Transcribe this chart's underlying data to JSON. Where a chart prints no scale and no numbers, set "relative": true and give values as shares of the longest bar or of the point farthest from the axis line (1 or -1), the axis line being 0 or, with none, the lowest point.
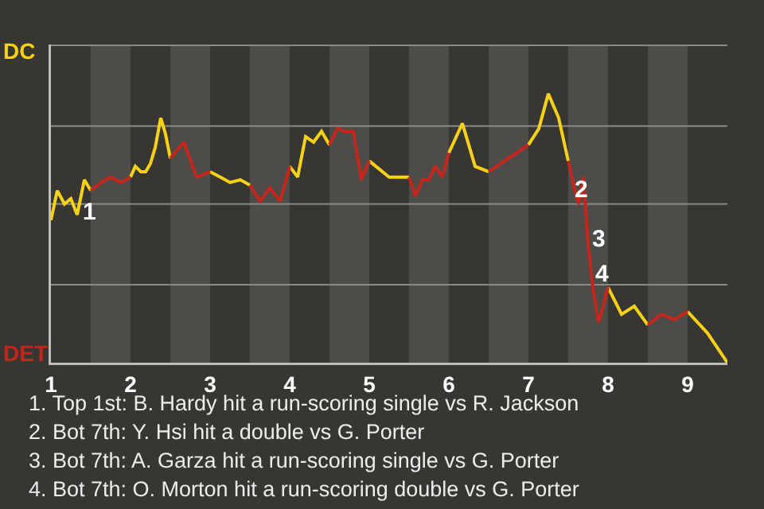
{
  "chart_data": {
    "type": "line",
    "relative": true,
    "series": [
      {
        "color": "#f7d117",
        "x": [
          1,
          1.08,
          1.17,
          1.25,
          1.33,
          1.42,
          1.5,
          null,
          2,
          2.06,
          2.13,
          2.19,
          2.25,
          2.31,
          2.38,
          2.44,
          2.5,
          null,
          3,
          3.13,
          3.25,
          3.38,
          3.5,
          null,
          4,
          4.1,
          4.2,
          4.3,
          4.4,
          4.5,
          null,
          5,
          5.25,
          5.5,
          null,
          6,
          6.17,
          6.33,
          6.5,
          null,
          7,
          7.13,
          7.25,
          7.38,
          7.5,
          null,
          8,
          8.17,
          8.33,
          8.5,
          null,
          9,
          9.25,
          9.5
        ],
        "values": [
          0.53,
          0.64,
          0.59,
          0.61,
          0.55,
          0.68,
          0.64,
          null,
          0.69,
          0.73,
          0.71,
          0.71,
          0.74,
          0.8,
          0.91,
          0.85,
          0.76,
          null,
          0.71,
          0.69,
          0.67,
          0.68,
          0.66,
          null,
          0.73,
          0.69,
          0.84,
          0.82,
          0.86,
          0.81,
          null,
          0.75,
          0.69,
          0.69,
          null,
          0.78,
          0.89,
          0.73,
          0.71,
          null,
          0.81,
          0.87,
          1,
          0.91,
          0.75,
          null,
          0.28,
          0.18,
          0.21,
          0.14,
          null,
          0.19,
          0.11,
          0
        ]
      },
      {
        "color": "#c4261d",
        "x": [
          1.5,
          1.63,
          1.75,
          1.88,
          2,
          null,
          2.5,
          2.67,
          2.83,
          3,
          null,
          3.5,
          3.63,
          3.75,
          3.88,
          4,
          null,
          4.5,
          4.6,
          4.7,
          4.8,
          4.9,
          5,
          null,
          5.5,
          5.58,
          5.67,
          5.75,
          5.83,
          5.92,
          6,
          null,
          6.5,
          6.75,
          7,
          null,
          7.5,
          7.56,
          7.63,
          7.69,
          7.75,
          7.81,
          7.88,
          7.94,
          8,
          null,
          8.5,
          8.67,
          8.83,
          9
        ],
        "values": [
          0.64,
          0.67,
          0.69,
          0.67,
          0.69,
          null,
          0.76,
          0.82,
          0.69,
          0.71,
          null,
          0.66,
          0.6,
          0.65,
          0.6,
          0.73,
          null,
          0.81,
          0.87,
          0.86,
          0.86,
          0.68,
          0.75,
          null,
          0.69,
          0.62,
          0.68,
          0.68,
          0.73,
          0.69,
          0.78,
          null,
          0.71,
          0.76,
          0.81,
          null,
          0.75,
          0.67,
          0.59,
          0.69,
          0.44,
          0.28,
          0.15,
          0.21,
          0.28,
          null,
          0.14,
          0.18,
          0.16,
          0.19
        ]
      }
    ],
    "xlim": [
      1,
      9.5
    ],
    "xticks": [
      1,
      2,
      3,
      4,
      5,
      6,
      7,
      8,
      9
    ],
    "ref_lines": [
      {
        "axis": "y",
        "value": 0.29,
        "color": "#8a8a8a",
        "line_style": "solid"
      },
      {
        "axis": "y",
        "value": 0.59,
        "color": "#8a8a8a",
        "line_style": "solid"
      },
      {
        "axis": "y",
        "value": 0.88,
        "color": "#8a8a8a",
        "line_style": "solid"
      },
      {
        "axis": "y",
        "value": 1.18,
        "color": "#8a8a8a",
        "line_style": "solid"
      }
    ],
    "marker": "none",
    "line_style": "solid",
    "bands": [
      {
        "axis": "x",
        "from": 1.5,
        "to": 2,
        "color": "#4d4c49"
      },
      {
        "axis": "x",
        "from": 2.5,
        "to": 3,
        "color": "#4d4c49"
      },
      {
        "axis": "x",
        "from": 3.5,
        "to": 4,
        "color": "#4d4c49"
      },
      {
        "axis": "x",
        "from": 4.5,
        "to": 5,
        "color": "#4d4c49"
      },
      {
        "axis": "x",
        "from": 5.5,
        "to": 6,
        "color": "#4d4c49"
      },
      {
        "axis": "x",
        "from": 6.5,
        "to": 7,
        "color": "#4d4c49"
      },
      {
        "axis": "x",
        "from": 7.5,
        "to": 8,
        "color": "#4d4c49"
      },
      {
        "axis": "x",
        "from": 8.5,
        "to": 9,
        "color": "#4d4c49"
      }
    ],
    "annotations": [
      "DC",
      "DET",
      {
        "text": "1",
        "x": 1.47,
        "y": 0.56
      },
      {
        "text": "2",
        "x": 7.66,
        "y": 0.64
      },
      {
        "text": "3",
        "x": 7.87,
        "y": 0.46
      },
      {
        "text": "4",
        "x": 7.92,
        "y": 0.33
      },
      "1. Top 1st: B. Hardy hit a run-scoring single vs R. Jackson",
      "2. Bot 7th: Y. Hsi hit a double vs G. Porter",
      "3. Bot 7th: A. Garza hit a run-scoring single vs G. Porter",
      "4. Bot 7th: O. Morton hit a run-scoring double vs G. Porter"
    ]
  }
}
